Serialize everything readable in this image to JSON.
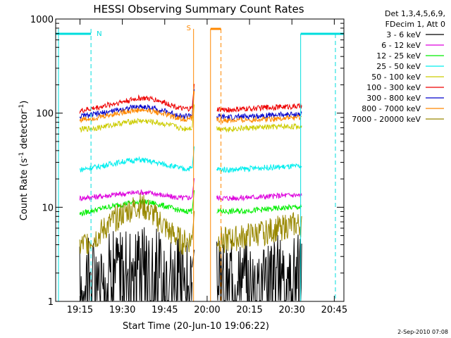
{
  "chart_data": {
    "type": "line",
    "title": "HESSI Observing Summary Count Rates",
    "xlabel": "Start Time (20-Jun-10 19:06:22)",
    "ylabel": "Count Rate (s⁻¹ detector⁻¹)",
    "ylabel_main": "Count Rate (s",
    "ylabel_sup1": "-1",
    "ylabel_mid": " detector",
    "ylabel_sup2": "-1",
    "ylabel_end": ")",
    "x_unit": "minutes since 19:06:22",
    "xlim": [
      0,
      102
    ],
    "ylim": [
      1,
      1000
    ],
    "yscale": "log",
    "x_ticks": [
      {
        "label": "19:15",
        "x": 8.6
      },
      {
        "label": "19:30",
        "x": 23.6
      },
      {
        "label": "19:45",
        "x": 38.6
      },
      {
        "label": "20:00",
        "x": 53.6
      },
      {
        "label": "20:15",
        "x": 68.6
      },
      {
        "label": "20:30",
        "x": 83.6
      },
      {
        "label": "20:45",
        "x": 98.6
      }
    ],
    "y_ticks": [
      {
        "label": "1",
        "y": 1
      },
      {
        "label": "10",
        "y": 10
      },
      {
        "label": "100",
        "y": 100
      },
      {
        "label": "1000",
        "y": 1000
      }
    ],
    "legend": {
      "header1": "Det 1,3,4,5,6,9,",
      "header2": "FDecim 1, Att 0",
      "position": "right"
    },
    "series": [
      {
        "name": "3 - 6 keV",
        "color": "#000000",
        "values": [
          [
            8.5,
            2.2
          ],
          [
            15,
            2.5
          ],
          [
            25,
            3.1
          ],
          [
            30,
            3.5
          ],
          [
            35,
            3.2
          ],
          [
            40,
            2.7
          ],
          [
            45,
            2.2
          ],
          [
            48,
            2.3
          ],
          [
            62,
            2.2
          ],
          [
            75,
            2.5
          ],
          [
            84,
            2.6
          ],
          [
            87,
            2.6
          ]
        ]
      },
      {
        "name": "6 - 12 keV",
        "color": "#dd00dd",
        "values": [
          [
            8.5,
            12.5
          ],
          [
            15,
            13
          ],
          [
            25,
            14
          ],
          [
            30,
            14.5
          ],
          [
            35,
            14
          ],
          [
            40,
            13
          ],
          [
            45,
            12.5
          ],
          [
            48,
            12.8
          ],
          [
            62,
            12.5
          ],
          [
            75,
            13
          ],
          [
            84,
            13.5
          ],
          [
            87,
            13.3
          ]
        ]
      },
      {
        "name": "12 - 25 keV",
        "color": "#00ee00",
        "values": [
          [
            8.5,
            8.5
          ],
          [
            15,
            9.5
          ],
          [
            25,
            11
          ],
          [
            30,
            11.5
          ],
          [
            35,
            11
          ],
          [
            40,
            10
          ],
          [
            45,
            9
          ],
          [
            48,
            9.2
          ],
          [
            62,
            9
          ],
          [
            75,
            9.5
          ],
          [
            84,
            10
          ],
          [
            87,
            10
          ]
        ]
      },
      {
        "name": "25 - 50 keV",
        "color": "#00eeee",
        "values": [
          [
            8.5,
            25
          ],
          [
            15,
            27
          ],
          [
            25,
            31
          ],
          [
            30,
            32
          ],
          [
            35,
            30
          ],
          [
            40,
            28
          ],
          [
            45,
            25.5
          ],
          [
            48,
            26
          ],
          [
            62,
            25
          ],
          [
            75,
            26.5
          ],
          [
            84,
            27
          ],
          [
            87,
            27
          ]
        ]
      },
      {
        "name": "50 - 100 keV",
        "color": "#cccc00",
        "values": [
          [
            8.5,
            67
          ],
          [
            15,
            70
          ],
          [
            25,
            80
          ],
          [
            30,
            83
          ],
          [
            35,
            80
          ],
          [
            40,
            75
          ],
          [
            45,
            68
          ],
          [
            48,
            70
          ],
          [
            62,
            68
          ],
          [
            75,
            71
          ],
          [
            84,
            72
          ],
          [
            87,
            72
          ]
        ]
      },
      {
        "name": "100 - 300 keV",
        "color": "#ee0000",
        "values": [
          [
            8.5,
            105
          ],
          [
            15,
            115
          ],
          [
            25,
            135
          ],
          [
            30,
            145
          ],
          [
            35,
            140
          ],
          [
            40,
            125
          ],
          [
            45,
            110
          ],
          [
            48,
            112
          ],
          [
            62,
            108
          ],
          [
            75,
            115
          ],
          [
            84,
            118
          ],
          [
            87,
            118
          ]
        ]
      },
      {
        "name": "300 - 800 keV",
        "color": "#0000cc",
        "values": [
          [
            8.5,
            92
          ],
          [
            15,
            98
          ],
          [
            25,
            112
          ],
          [
            30,
            118
          ],
          [
            35,
            112
          ],
          [
            40,
            102
          ],
          [
            45,
            92
          ],
          [
            48,
            95
          ],
          [
            62,
            90
          ],
          [
            75,
            95
          ],
          [
            84,
            97
          ],
          [
            87,
            97
          ]
        ]
      },
      {
        "name": "800 - 7000 keV",
        "color": "#ff8800",
        "values": [
          [
            8.5,
            85
          ],
          [
            15,
            90
          ],
          [
            25,
            104
          ],
          [
            30,
            108
          ],
          [
            35,
            104
          ],
          [
            40,
            95
          ],
          [
            45,
            86
          ],
          [
            48,
            88
          ],
          [
            62,
            83
          ],
          [
            75,
            87
          ],
          [
            84,
            89
          ],
          [
            87,
            89
          ]
        ]
      },
      {
        "name": "7000 - 20000 keV",
        "color": "#998800",
        "values": [
          [
            8.5,
            3.8
          ],
          [
            15,
            5
          ],
          [
            25,
            9
          ],
          [
            30,
            10.5
          ],
          [
            35,
            8
          ],
          [
            40,
            5.5
          ],
          [
            45,
            4.2
          ],
          [
            48,
            4.5
          ],
          [
            62,
            4.5
          ],
          [
            75,
            5.5
          ],
          [
            84,
            6.5
          ],
          [
            87,
            6.5
          ]
        ]
      }
    ],
    "annotations": [
      {
        "label": "N",
        "color": "#00dddd",
        "x": 12.5,
        "kind": "night"
      },
      {
        "label": "S",
        "color": "#ff8800",
        "x": 52.5,
        "kind": "saa"
      }
    ]
  },
  "footer": {
    "date": "2-Sep-2010 07:08"
  }
}
